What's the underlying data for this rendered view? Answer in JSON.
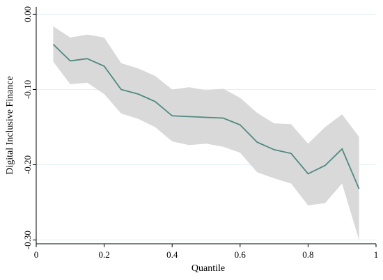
{
  "chart_data": {
    "type": "line",
    "xlabel": "Quantile",
    "ylabel": "Digital Inclusive Finance",
    "xlim": [
      0,
      1
    ],
    "ylim": [
      -0.305,
      0.005
    ],
    "x_ticks": [
      0,
      0.2,
      0.4,
      0.6,
      0.8,
      1
    ],
    "x_tick_labels": [
      "0",
      "0.2",
      "0.4",
      "0.6",
      "0.8",
      "1"
    ],
    "y_ticks": [
      0.0,
      -0.1,
      -0.2,
      -0.3
    ],
    "y_tick_labels": [
      "0.00",
      "-0.10",
      "-0.20",
      "-0.30"
    ],
    "grid": "horizontal",
    "line_color": "#4f8a80",
    "band_color": "#d9d9d9",
    "x": [
      0.05,
      0.1,
      0.15,
      0.2,
      0.25,
      0.3,
      0.35,
      0.4,
      0.45,
      0.5,
      0.55,
      0.6,
      0.65,
      0.7,
      0.75,
      0.8,
      0.85,
      0.9,
      0.95
    ],
    "series": [
      {
        "values": [
          -0.04,
          -0.062,
          -0.059,
          -0.069,
          -0.1,
          -0.106,
          -0.116,
          -0.135,
          -0.136,
          -0.137,
          -0.138,
          -0.147,
          -0.17,
          -0.18,
          -0.185,
          -0.212,
          -0.201,
          -0.179,
          -0.232
        ]
      }
    ],
    "band": {
      "upper": [
        -0.016,
        -0.031,
        -0.027,
        -0.031,
        -0.065,
        -0.072,
        -0.082,
        -0.1,
        -0.097,
        -0.101,
        -0.099,
        -0.111,
        -0.131,
        -0.145,
        -0.146,
        -0.172,
        -0.15,
        -0.133,
        -0.163
      ],
      "lower": [
        -0.063,
        -0.093,
        -0.091,
        -0.106,
        -0.132,
        -0.139,
        -0.15,
        -0.169,
        -0.174,
        -0.172,
        -0.176,
        -0.184,
        -0.21,
        -0.218,
        -0.225,
        -0.254,
        -0.251,
        -0.225,
        -0.3
      ]
    }
  }
}
